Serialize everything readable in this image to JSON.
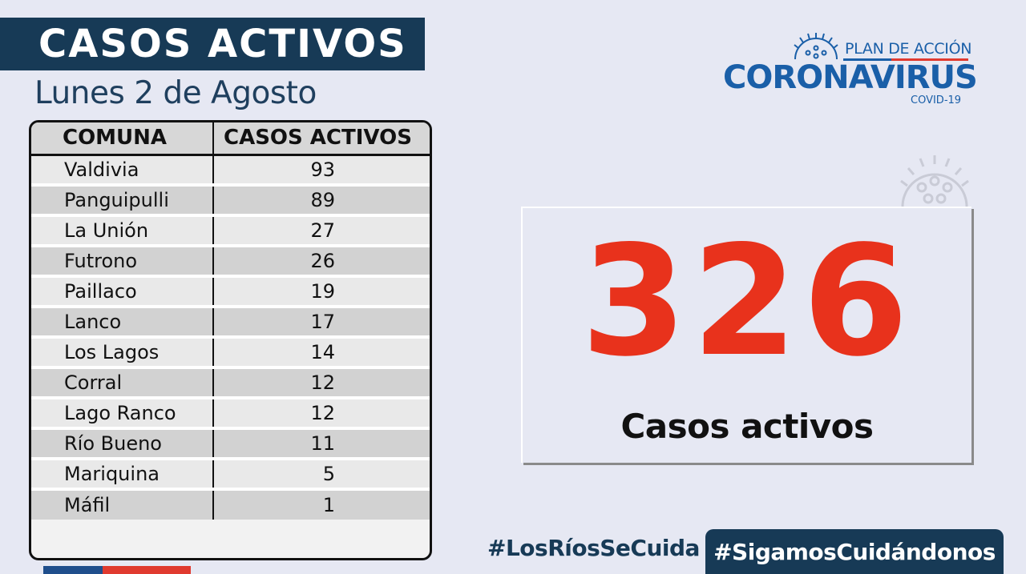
{
  "header": {
    "title": "CASOS ACTIVOS",
    "date": "Lunes 2 de Agosto"
  },
  "logo": {
    "plan": "PLAN DE ACCIÓN",
    "main": "CORONAVIRUS",
    "sub": "COVID-19",
    "icon": "virus-icon"
  },
  "table": {
    "headers": [
      "COMUNA",
      "CASOS ACTIVOS"
    ],
    "rows": [
      {
        "comuna": "Valdivia",
        "casos": "93"
      },
      {
        "comuna": "Panguipulli",
        "casos": "89"
      },
      {
        "comuna": "La Unión",
        "casos": "27"
      },
      {
        "comuna": "Futrono",
        "casos": "26"
      },
      {
        "comuna": "Paillaco",
        "casos": "19"
      },
      {
        "comuna": "Lanco",
        "casos": "17"
      },
      {
        "comuna": "Los Lagos",
        "casos": "14"
      },
      {
        "comuna": "Corral",
        "casos": "12"
      },
      {
        "comuna": "Lago Ranco",
        "casos": "12"
      },
      {
        "comuna": "Río Bueno",
        "casos": "11"
      },
      {
        "comuna": "Mariquina",
        "casos": "5"
      },
      {
        "comuna": "Máfil",
        "casos": "1"
      }
    ]
  },
  "total": {
    "value": "326",
    "label": "Casos activos"
  },
  "hashtags": {
    "primary": "#LosRíosSeCuida",
    "secondary": "#SigamosCuidándonos"
  },
  "colors": {
    "navy": "#173a56",
    "brand_blue": "#1a5fa8",
    "accent_red": "#e8321c",
    "background": "#e6e8f3"
  }
}
